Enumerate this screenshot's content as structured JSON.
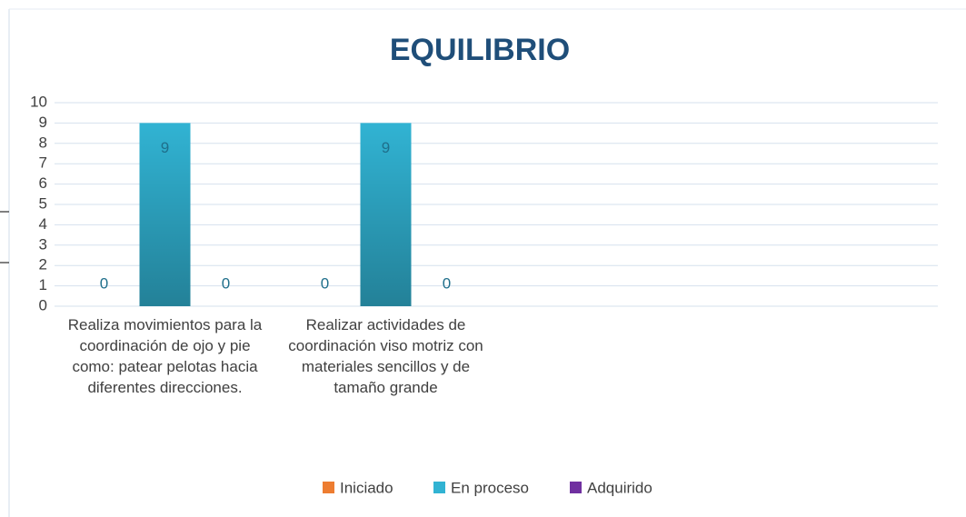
{
  "chart_data": {
    "type": "bar",
    "title": "EQUILIBRIO",
    "categories": [
      "Realiza movimientos para la coordinación de ojo y pie como: patear pelotas hacia diferentes direcciones.",
      "Realizar actividades de coordinación viso motriz con materiales sencillos y de tamaño grande",
      null,
      null
    ],
    "series": [
      {
        "name": "Iniciado",
        "color": "#ed7d31",
        "values": [
          0,
          0,
          null,
          null
        ]
      },
      {
        "name": "En proceso",
        "color": "#31b3d3",
        "values": [
          9,
          9,
          null,
          null
        ]
      },
      {
        "name": "Adquirido",
        "color": "#7030a0",
        "values": [
          0,
          0,
          null,
          null
        ]
      }
    ],
    "ylim": [
      0,
      10
    ],
    "yticks": [
      0,
      1,
      2,
      3,
      4,
      5,
      6,
      7,
      8,
      9,
      10
    ],
    "grid": true,
    "legend": "bottom",
    "data_labels": true
  }
}
